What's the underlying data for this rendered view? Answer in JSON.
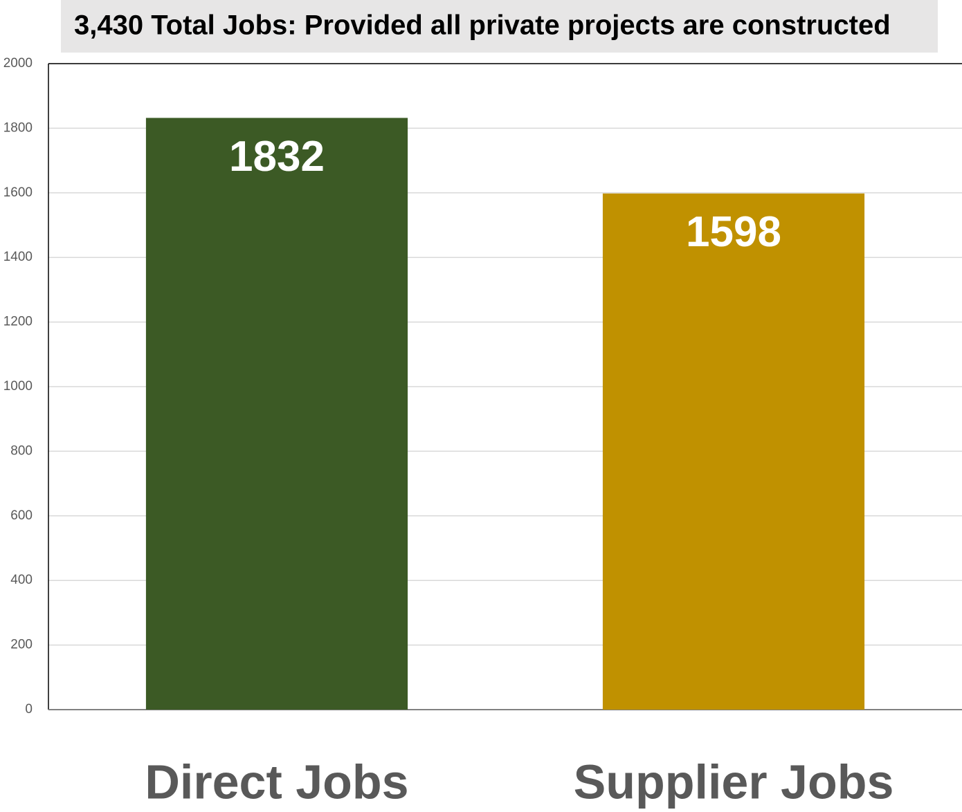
{
  "chart_data": {
    "type": "bar",
    "title": "3,430 Total Jobs: Provided all private projects are constructed",
    "categories": [
      "Direct Jobs",
      "Supplier Jobs"
    ],
    "values": [
      1832,
      1598
    ],
    "colors": [
      "#3c5a25",
      "#c09100"
    ],
    "ylim": [
      0,
      2000
    ],
    "yticks": [
      0,
      200,
      400,
      600,
      800,
      1000,
      1200,
      1400,
      1600,
      1800,
      2000
    ],
    "grid": true
  }
}
